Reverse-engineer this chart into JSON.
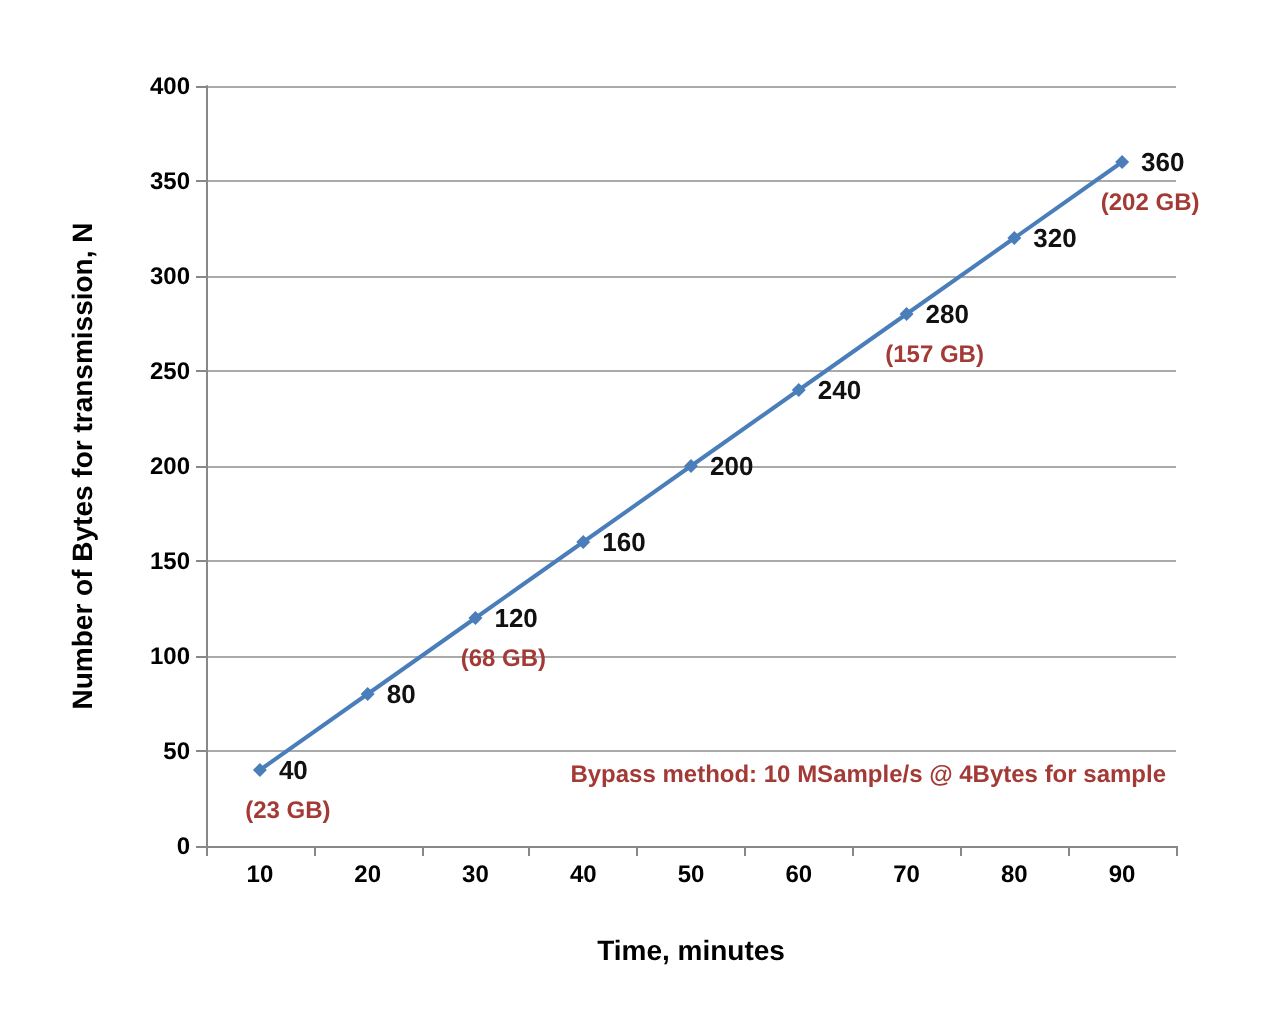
{
  "chart_data": {
    "type": "line",
    "xlabel": "Time, minutes",
    "ylabel": "Number of Bytes for transmission, N",
    "categories": [
      "10",
      "20",
      "30",
      "40",
      "50",
      "60",
      "70",
      "80",
      "90"
    ],
    "series": [
      {
        "color": "#4a7ebb",
        "values": [
          40,
          80,
          120,
          160,
          200,
          240,
          280,
          320,
          360
        ]
      }
    ],
    "ylim": [
      0,
      400
    ],
    "yticks": [
      0,
      50,
      100,
      150,
      200,
      250,
      300,
      350,
      400
    ],
    "grid": "y",
    "marker": "diamond",
    "line_style": "solid",
    "data_labels": true,
    "annotations": [
      {
        "text": "(23 GB)",
        "x": "10",
        "y": 40
      },
      {
        "text": "(68 GB)",
        "x": "30",
        "y": 120
      },
      {
        "text": "(157 GB)",
        "x": "70",
        "y": 280
      },
      {
        "text": "(202 GB)",
        "x": "90",
        "y": 360
      },
      "Bypass method: 10 MSample/s @ 4Bytes for sample"
    ]
  }
}
